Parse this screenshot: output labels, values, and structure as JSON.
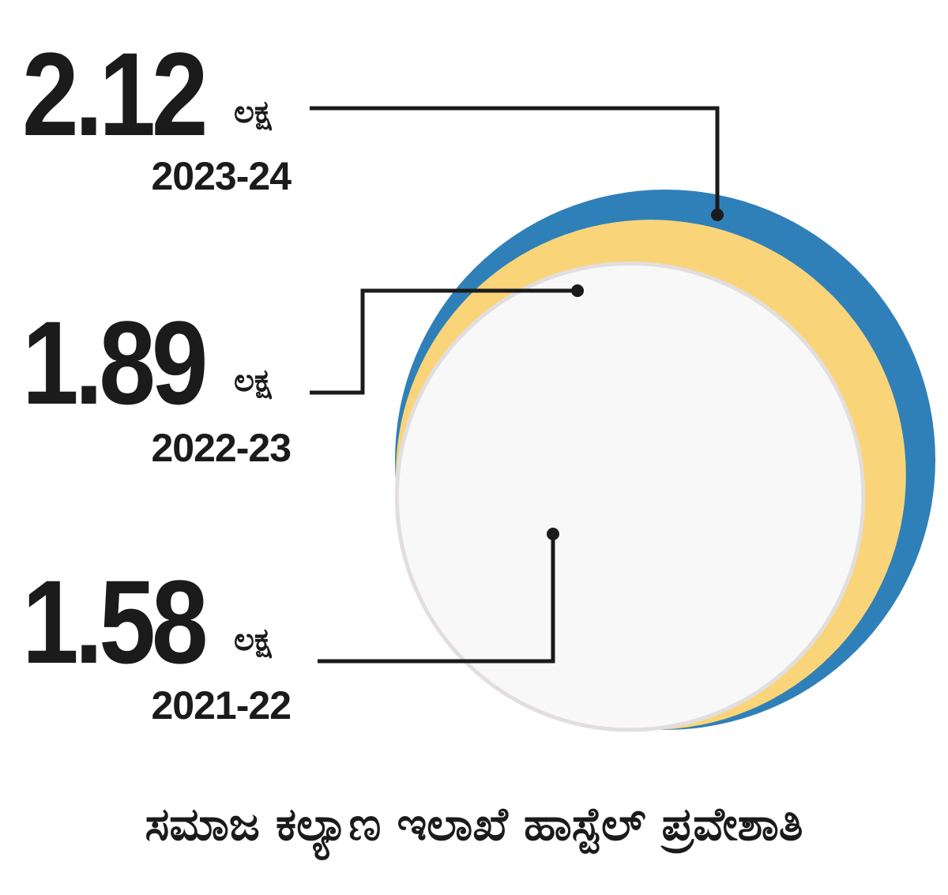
{
  "chart_data": {
    "type": "bubble",
    "title": "ಸಮಾಜ ಕಲ್ಯಾಣ ಇಲಾಖೆ ಹಾಸ್ಟೆಲ್ ಪ್ರವೇಶಾತಿ",
    "unit": "ಲಕ್ಷ",
    "series": [
      {
        "category": "2023-24",
        "value": 2.12,
        "label": "2.12",
        "color": "#2f80b8"
      },
      {
        "category": "2022-23",
        "value": 1.89,
        "label": "1.89",
        "color": "#fad478"
      },
      {
        "category": "2021-22",
        "value": 1.58,
        "label": "1.58",
        "color": "#f8f8f8"
      }
    ]
  },
  "colors": {
    "innerRing": "#e2dedd",
    "leaderLine": "#1b1b1b",
    "text": "#1b1b1b"
  }
}
